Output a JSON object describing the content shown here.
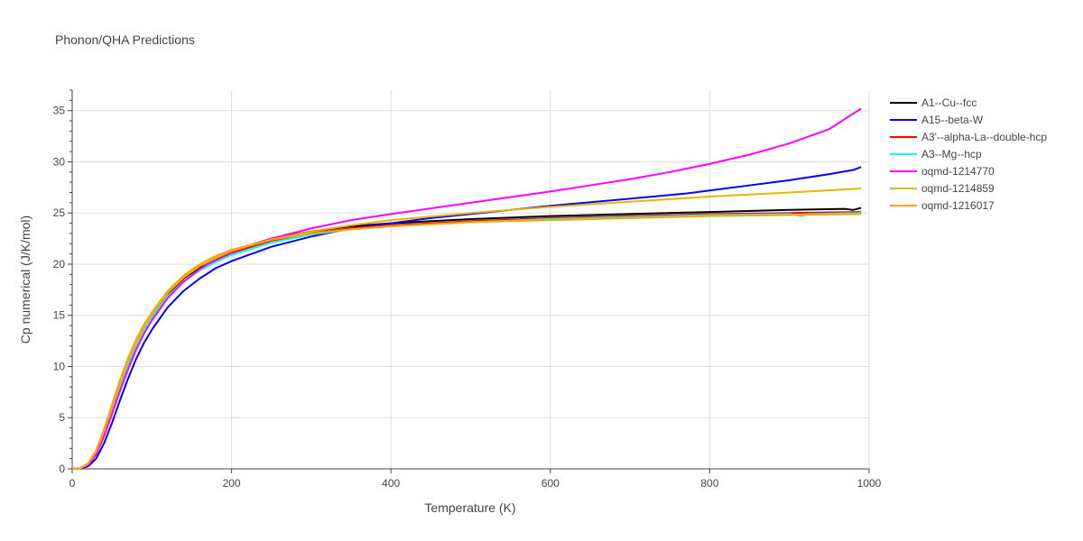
{
  "chart_data": {
    "type": "line",
    "title": "Phonon/QHA Predictions",
    "xlabel": "Temperature (K)",
    "ylabel": "Cp numerical (J/K/mol)",
    "xlim": [
      0,
      1000
    ],
    "ylim": [
      0,
      37
    ],
    "x_ticks": [
      0,
      200,
      400,
      600,
      800,
      1000
    ],
    "y_ticks": [
      0,
      5,
      10,
      15,
      20,
      25,
      30,
      35
    ],
    "grid": true,
    "legend_position": "right",
    "series": [
      {
        "name": "A1--Cu--fcc",
        "color": "#000000",
        "points": [
          [
            0,
            0
          ],
          [
            10,
            0.05
          ],
          [
            20,
            0.4
          ],
          [
            30,
            1.5
          ],
          [
            40,
            3.4
          ],
          [
            50,
            5.7
          ],
          [
            60,
            8.0
          ],
          [
            70,
            10.2
          ],
          [
            80,
            12.1
          ],
          [
            90,
            13.7
          ],
          [
            100,
            15.0
          ],
          [
            120,
            17.1
          ],
          [
            140,
            18.6
          ],
          [
            160,
            19.7
          ],
          [
            180,
            20.6
          ],
          [
            200,
            21.3
          ],
          [
            250,
            22.5
          ],
          [
            300,
            23.2
          ],
          [
            350,
            23.7
          ],
          [
            400,
            24.0
          ],
          [
            500,
            24.4
          ],
          [
            600,
            24.7
          ],
          [
            700,
            24.9
          ],
          [
            800,
            25.1
          ],
          [
            900,
            25.3
          ],
          [
            970,
            25.4
          ],
          [
            980,
            25.3
          ],
          [
            990,
            25.5
          ]
        ]
      },
      {
        "name": "A15--beta-W",
        "color": "#0000ff",
        "points": [
          [
            0,
            0
          ],
          [
            10,
            0.03
          ],
          [
            20,
            0.25
          ],
          [
            30,
            1.0
          ],
          [
            40,
            2.5
          ],
          [
            50,
            4.5
          ],
          [
            60,
            6.7
          ],
          [
            70,
            8.8
          ],
          [
            80,
            10.7
          ],
          [
            90,
            12.3
          ],
          [
            100,
            13.6
          ],
          [
            120,
            15.8
          ],
          [
            140,
            17.4
          ],
          [
            160,
            18.6
          ],
          [
            180,
            19.6
          ],
          [
            200,
            20.3
          ],
          [
            250,
            21.7
          ],
          [
            300,
            22.7
          ],
          [
            350,
            23.5
          ],
          [
            400,
            24.0
          ],
          [
            450,
            24.5
          ],
          [
            500,
            24.9
          ],
          [
            600,
            25.7
          ],
          [
            700,
            26.4
          ],
          [
            770,
            26.9
          ],
          [
            800,
            27.2
          ],
          [
            850,
            27.7
          ],
          [
            900,
            28.2
          ],
          [
            950,
            28.8
          ],
          [
            980,
            29.2
          ],
          [
            990,
            29.5
          ]
        ]
      },
      {
        "name": "A3'--alpha-La--double-hcp",
        "color": "#ff0000",
        "points": [
          [
            0,
            0
          ],
          [
            10,
            0.05
          ],
          [
            20,
            0.4
          ],
          [
            30,
            1.4
          ],
          [
            40,
            3.2
          ],
          [
            50,
            5.4
          ],
          [
            60,
            7.7
          ],
          [
            70,
            9.8
          ],
          [
            80,
            11.7
          ],
          [
            90,
            13.3
          ],
          [
            100,
            14.6
          ],
          [
            120,
            16.8
          ],
          [
            140,
            18.3
          ],
          [
            160,
            19.5
          ],
          [
            180,
            20.4
          ],
          [
            200,
            21.1
          ],
          [
            250,
            22.3
          ],
          [
            300,
            23.0
          ],
          [
            350,
            23.5
          ],
          [
            400,
            23.8
          ],
          [
            500,
            24.2
          ],
          [
            600,
            24.5
          ],
          [
            700,
            24.7
          ],
          [
            800,
            24.9
          ],
          [
            900,
            25.0
          ],
          [
            990,
            25.1
          ]
        ]
      },
      {
        "name": "A3--Mg--hcp",
        "color": "#00ffff",
        "points": [
          [
            0,
            0
          ],
          [
            10,
            0.06
          ],
          [
            20,
            0.45
          ],
          [
            30,
            1.6
          ],
          [
            40,
            3.5
          ],
          [
            50,
            5.8
          ],
          [
            60,
            8.1
          ],
          [
            70,
            10.2
          ],
          [
            80,
            12.0
          ],
          [
            90,
            13.5
          ],
          [
            100,
            14.8
          ],
          [
            120,
            16.9
          ],
          [
            140,
            18.3
          ],
          [
            160,
            19.4
          ],
          [
            180,
            20.2
          ],
          [
            200,
            20.9
          ],
          [
            250,
            22.1
          ],
          [
            300,
            22.9
          ],
          [
            350,
            23.4
          ],
          [
            400,
            23.7
          ],
          [
            500,
            24.1
          ],
          [
            600,
            24.4
          ],
          [
            700,
            24.6
          ],
          [
            800,
            24.8
          ],
          [
            900,
            24.9
          ],
          [
            915,
            24.7
          ],
          [
            925,
            24.9
          ],
          [
            990,
            25.0
          ]
        ]
      },
      {
        "name": "oqmd-1214770",
        "color": "#ff00ff",
        "points": [
          [
            0,
            0
          ],
          [
            10,
            0.05
          ],
          [
            20,
            0.4
          ],
          [
            30,
            1.4
          ],
          [
            40,
            3.2
          ],
          [
            50,
            5.4
          ],
          [
            60,
            7.6
          ],
          [
            70,
            9.7
          ],
          [
            80,
            11.6
          ],
          [
            90,
            13.2
          ],
          [
            100,
            14.5
          ],
          [
            120,
            16.7
          ],
          [
            140,
            18.3
          ],
          [
            160,
            19.5
          ],
          [
            180,
            20.5
          ],
          [
            200,
            21.2
          ],
          [
            250,
            22.5
          ],
          [
            300,
            23.5
          ],
          [
            350,
            24.3
          ],
          [
            400,
            24.9
          ],
          [
            500,
            26.0
          ],
          [
            600,
            27.1
          ],
          [
            650,
            27.7
          ],
          [
            700,
            28.3
          ],
          [
            750,
            29.0
          ],
          [
            800,
            29.8
          ],
          [
            850,
            30.7
          ],
          [
            900,
            31.8
          ],
          [
            950,
            33.2
          ],
          [
            990,
            35.2
          ]
        ]
      },
      {
        "name": "oqmd-1214859",
        "color": "#e8b400",
        "points": [
          [
            0,
            0
          ],
          [
            10,
            0.06
          ],
          [
            20,
            0.5
          ],
          [
            30,
            1.7
          ],
          [
            40,
            3.7
          ],
          [
            50,
            6.0
          ],
          [
            60,
            8.4
          ],
          [
            70,
            10.5
          ],
          [
            80,
            12.3
          ],
          [
            90,
            13.8
          ],
          [
            100,
            15.1
          ],
          [
            120,
            17.2
          ],
          [
            140,
            18.7
          ],
          [
            160,
            19.8
          ],
          [
            180,
            20.6
          ],
          [
            200,
            21.3
          ],
          [
            250,
            22.4
          ],
          [
            300,
            23.2
          ],
          [
            350,
            23.8
          ],
          [
            400,
            24.3
          ],
          [
            500,
            25.0
          ],
          [
            600,
            25.6
          ],
          [
            700,
            26.1
          ],
          [
            800,
            26.6
          ],
          [
            900,
            27.0
          ],
          [
            990,
            27.4
          ]
        ]
      },
      {
        "name": "oqmd-1216017",
        "color": "#ffa500",
        "points": [
          [
            0,
            0
          ],
          [
            10,
            0.07
          ],
          [
            20,
            0.55
          ],
          [
            30,
            1.8
          ],
          [
            40,
            3.9
          ],
          [
            50,
            6.3
          ],
          [
            60,
            8.7
          ],
          [
            70,
            10.8
          ],
          [
            80,
            12.6
          ],
          [
            90,
            14.1
          ],
          [
            100,
            15.3
          ],
          [
            120,
            17.4
          ],
          [
            140,
            18.9
          ],
          [
            160,
            20.0
          ],
          [
            180,
            20.8
          ],
          [
            200,
            21.4
          ],
          [
            250,
            22.4
          ],
          [
            300,
            23.0
          ],
          [
            350,
            23.4
          ],
          [
            400,
            23.7
          ],
          [
            500,
            24.1
          ],
          [
            600,
            24.3
          ],
          [
            700,
            24.5
          ],
          [
            800,
            24.7
          ],
          [
            900,
            24.8
          ],
          [
            990,
            24.9
          ]
        ]
      }
    ]
  }
}
